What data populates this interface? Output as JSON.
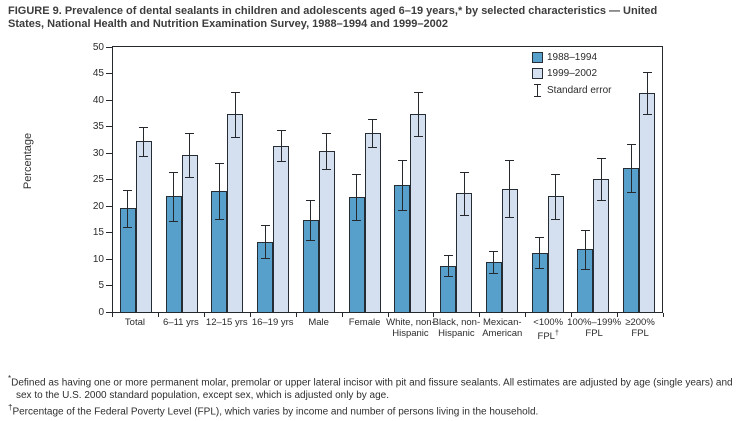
{
  "figure": {
    "title_line1": "FIGURE 9. Prevalence of dental sealants in children and adolescents aged 6–19 years,* by selected characteristics — United",
    "title_line2": "States, National Health and Nutrition Examination Survey, 1988–1994 and 1999–2002"
  },
  "chart_data": {
    "type": "bar",
    "title": "FIGURE 9. Prevalence of dental sealants in children and adolescents aged 6–19 years, by selected characteristics — United States, National Health and Nutrition Examination Survey, 1988–1994 and 1999–2002",
    "xlabel": "",
    "ylabel": "Percentage",
    "ylim": [
      0,
      50
    ],
    "ytick_step": 5,
    "grid": false,
    "legend_position": "top-right-inside",
    "legend": [
      "1988–1994",
      "1999–2002",
      "Standard error"
    ],
    "error_bars": "standard error, both directions, capped",
    "categories_lines": [
      [
        "Total"
      ],
      [
        "6–11 yrs"
      ],
      [
        "12–15 yrs"
      ],
      [
        "16–19 yrs"
      ],
      [
        "Male"
      ],
      [
        "Female"
      ],
      [
        "White, non-",
        "Hispanic"
      ],
      [
        "Black, non-",
        "Hispanic"
      ],
      [
        "Mexican-",
        "American"
      ],
      [
        "<100%",
        "FPL†"
      ],
      [
        "100%–199%",
        "FPL"
      ],
      [
        "≥200%",
        "FPL"
      ]
    ],
    "categories": [
      "Total",
      "6–11 yrs",
      "12–15 yrs",
      "16–19 yrs",
      "Male",
      "Female",
      "White, non-Hispanic",
      "Black, non-Hispanic",
      "Mexican-American",
      "<100% FPL",
      "100%–199% FPL",
      "≥200% FPL"
    ],
    "series": [
      {
        "name": "1988–1994",
        "color": "#57a0cc",
        "values": [
          19.6,
          21.8,
          22.8,
          13.3,
          17.3,
          21.7,
          24.0,
          8.7,
          9.4,
          11.2,
          11.8,
          27.2
        ],
        "standard_errors": [
          3.5,
          4.7,
          5.3,
          3.2,
          3.8,
          4.3,
          4.7,
          2.0,
          2.1,
          2.9,
          3.7,
          4.5
        ]
      },
      {
        "name": "1999–2002",
        "color": "#d4dfef",
        "values": [
          32.2,
          29.6,
          37.3,
          31.4,
          30.3,
          33.8,
          37.4,
          22.4,
          23.3,
          21.8,
          25.1,
          41.3
        ],
        "standard_errors": [
          2.7,
          4.2,
          4.3,
          2.9,
          3.4,
          2.6,
          4.1,
          4.1,
          5.3,
          4.3,
          4.0,
          4.0
        ]
      }
    ]
  },
  "footnotes": [
    {
      "marker": "*",
      "text": "Defined as having one or more permanent molar, premolar or upper lateral incisor with pit and fissure sealants.  All estimates are adjusted by age (single years) and sex to the U.S. 2000 standard population, except sex, which is adjusted only by age."
    },
    {
      "marker": "†",
      "text": "Percentage of the Federal Poverty Level (FPL), which varies by income and number of persons living in the household."
    }
  ]
}
